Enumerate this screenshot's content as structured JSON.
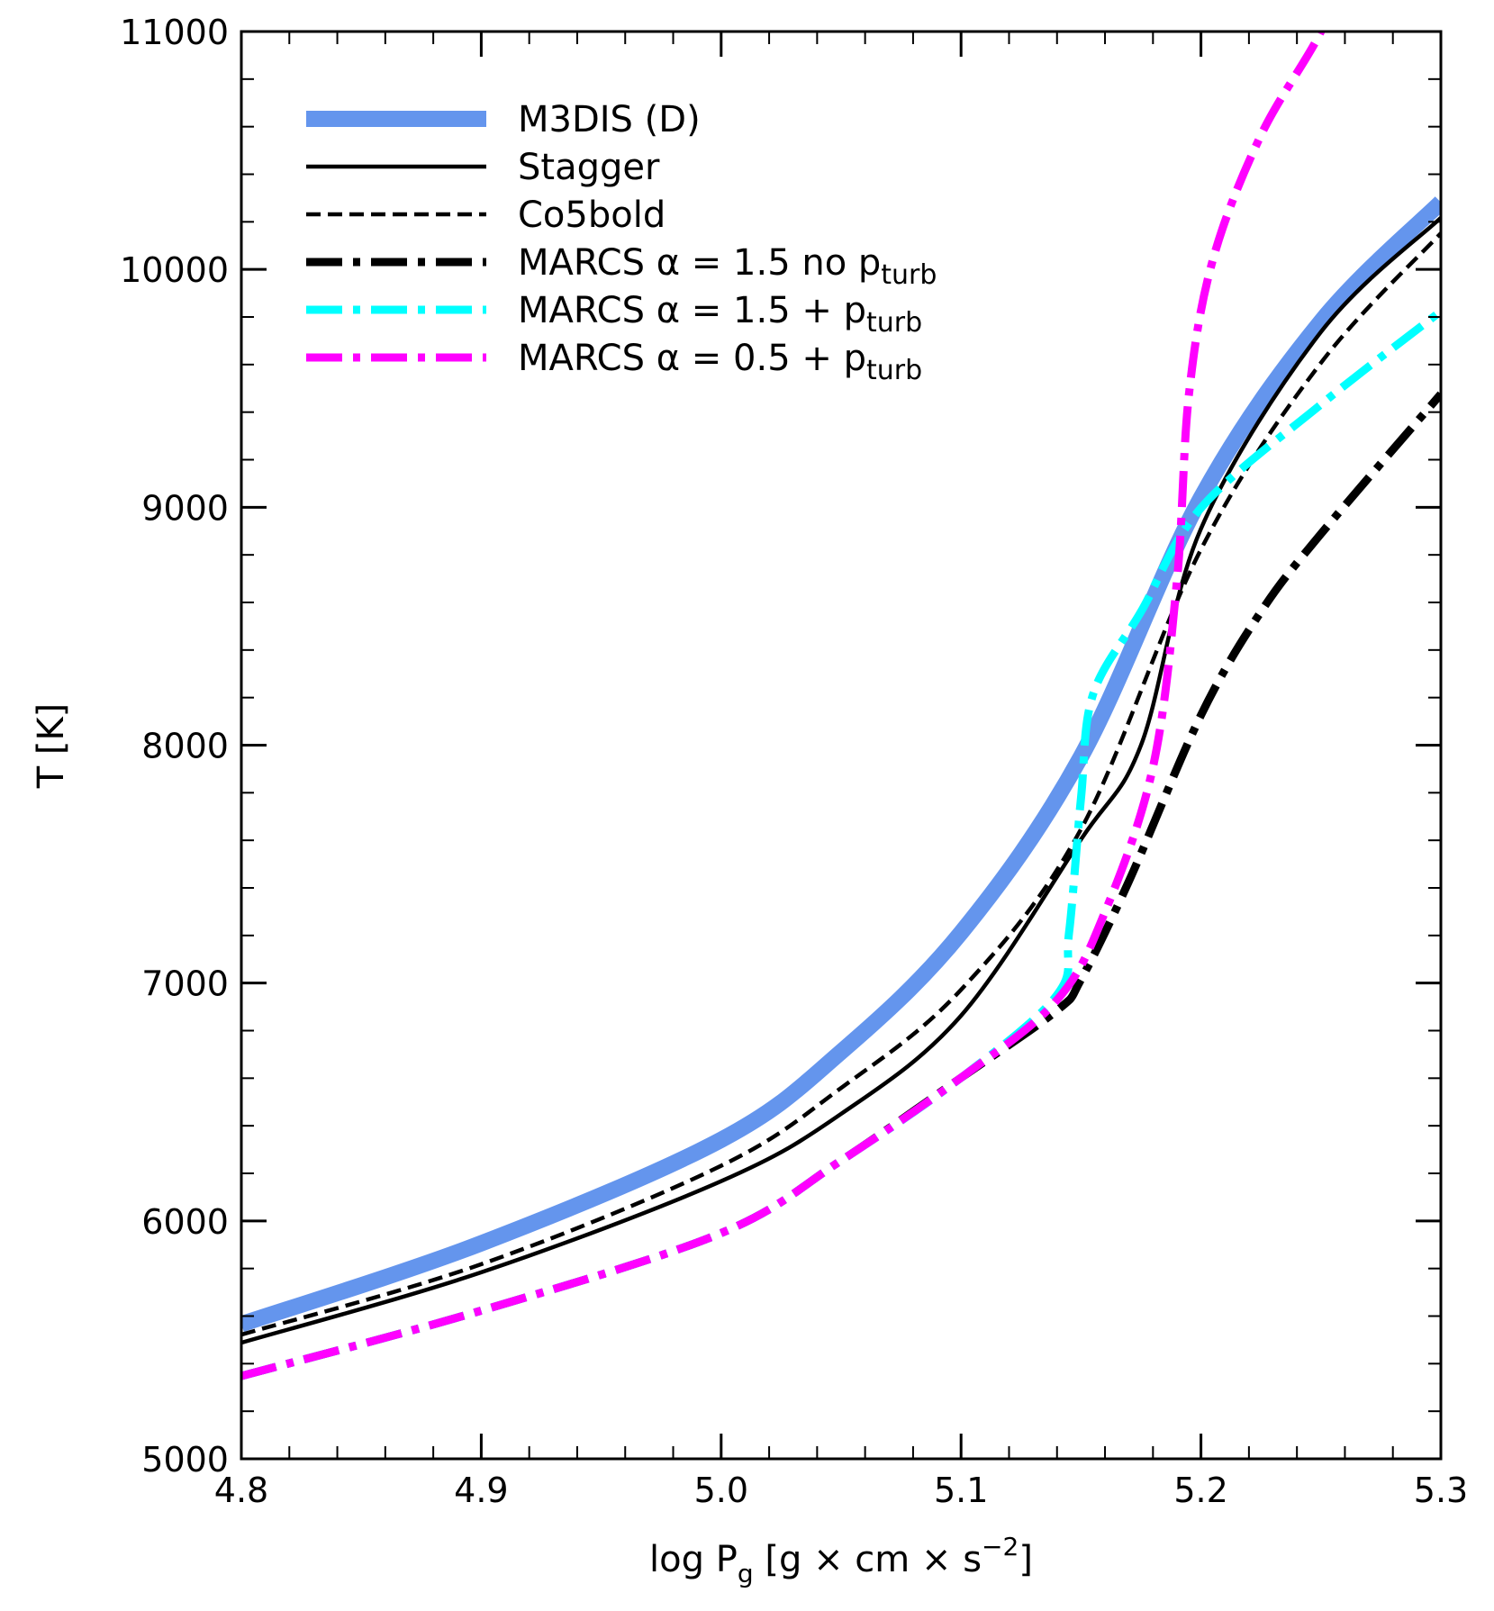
{
  "chart_data": {
    "type": "line",
    "title": "",
    "xlabel": "log P_g [g × cm × s^-2]",
    "xlabel_parts": {
      "main": "log P",
      "sub": "g",
      "unit": " [g × cm × s",
      "sup": "−2",
      "close": "]"
    },
    "ylabel": "T [K]",
    "xlim": [
      4.8,
      5.3
    ],
    "ylim": [
      5000,
      11000
    ],
    "xticks": [
      "4.8",
      "4.9",
      "5.0",
      "5.1",
      "5.2",
      "5.3"
    ],
    "yticks": [
      "5000",
      "6000",
      "7000",
      "8000",
      "9000",
      "10000",
      "11000"
    ],
    "grid": false,
    "legend_placement": "top-left",
    "series": [
      {
        "name": "M3DIS (D)",
        "legend": {
          "main": "M3DIS (D)",
          "sub": ""
        },
        "color": "#6495ED",
        "style": "solid-thick",
        "x": [
          4.8,
          4.9,
          5.0,
          5.05,
          5.1,
          5.15,
          5.2,
          5.25,
          5.3
        ],
        "y": [
          5566,
          5906,
          6341,
          6711,
          7212,
          7952,
          9040,
          9781,
          10282
        ]
      },
      {
        "name": "Stagger",
        "legend": {
          "main": "Stagger",
          "sub": ""
        },
        "color": "#000000",
        "style": "solid",
        "x": [
          4.8,
          4.9,
          5.0,
          5.05,
          5.1,
          5.15,
          5.175,
          5.2,
          5.25,
          5.3
        ],
        "y": [
          5488,
          5784,
          6167,
          6450,
          6863,
          7604,
          8000,
          8910,
          9737,
          10217
        ]
      },
      {
        "name": "Co5bold",
        "legend": {
          "main": "Co5bold",
          "sub": ""
        },
        "color": "#000000",
        "style": "dashed",
        "x": [
          4.8,
          4.9,
          5.0,
          5.05,
          5.1,
          5.15,
          5.2,
          5.25,
          5.3
        ],
        "y": [
          5522,
          5818,
          6232,
          6559,
          6972,
          7647,
          8823,
          9607,
          10152
        ]
      },
      {
        "name": "MARCS α = 1.5 no p_turb",
        "legend": {
          "main": "MARCS α = 1.5 no p",
          "sub": "turb"
        },
        "color": "#000000",
        "style": "dashdot-thick",
        "x": [
          4.8,
          4.9,
          5.0,
          5.05,
          5.1,
          5.14,
          5.15,
          5.17,
          5.2,
          5.225,
          5.25,
          5.3
        ],
        "y": [
          5348,
          5623,
          5949,
          6254,
          6602,
          6885,
          7015,
          7429,
          8126,
          8561,
          8888,
          9476
        ]
      },
      {
        "name": "MARCS α = 1.5 + p_turb",
        "legend": {
          "main": "MARCS α = 1.5 + p",
          "sub": "turb"
        },
        "color": "#00FFFF",
        "style": "dashdot-thick",
        "x": [
          4.8,
          4.9,
          5.0,
          5.05,
          5.1,
          5.14,
          5.145,
          5.15,
          5.155,
          5.175,
          5.2,
          5.25,
          5.3
        ],
        "y": [
          5348,
          5623,
          5949,
          6254,
          6602,
          6950,
          7211,
          7778,
          8213,
          8561,
          8997,
          9432,
          9824
        ]
      },
      {
        "name": "MARCS α = 0.5 + p_turb",
        "legend": {
          "main": "MARCS α = 0.5 + p",
          "sub": "turb"
        },
        "color": "#FF00FF",
        "style": "dashdot-thick",
        "x": [
          4.8,
          4.9,
          5.0,
          5.05,
          5.1,
          5.14,
          5.16,
          5.18,
          5.19,
          5.195,
          5.205,
          5.225,
          5.25,
          5.26
        ],
        "y": [
          5348,
          5623,
          5949,
          6254,
          6602,
          6929,
          7299,
          7908,
          8692,
          9476,
          10042,
          10564,
          11000,
          11300
        ]
      }
    ]
  }
}
